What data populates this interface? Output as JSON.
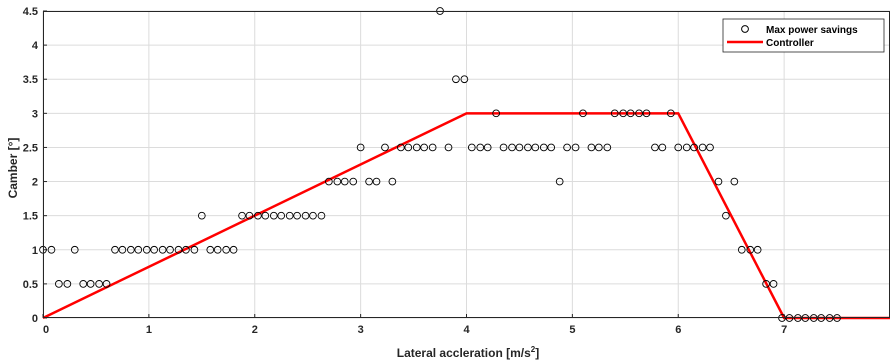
{
  "chart_data": {
    "type": "scatter",
    "xlabel": "Lateral accleration [m/s",
    "xlabel_sup": "2",
    "xlabel_end": "]",
    "ylabel": "Camber [°]",
    "xlim": [
      0,
      8
    ],
    "ylim": [
      0,
      4.5
    ],
    "xticks": [
      0,
      1,
      2,
      3,
      4,
      5,
      6,
      7
    ],
    "yticks": [
      0,
      0.5,
      1,
      1.5,
      2,
      2.5,
      3,
      3.5,
      4,
      4.5
    ],
    "xtick_labels": [
      "0",
      "1",
      "2",
      "3",
      "4",
      "5",
      "6",
      "7"
    ],
    "ytick_labels": [
      "0",
      "0.5",
      "1",
      "1.5",
      "2",
      "2.5",
      "3",
      "3.5",
      "4",
      "4.5"
    ],
    "grid": true,
    "legend_position": "top-right",
    "series": [
      {
        "name": "Max power savings",
        "kind": "scatter",
        "marker": "open-circle",
        "color": "#000000",
        "points": [
          [
            0.0,
            1.0
          ],
          [
            0.08,
            1.0
          ],
          [
            0.15,
            0.5
          ],
          [
            0.23,
            0.5
          ],
          [
            0.3,
            1.0
          ],
          [
            0.38,
            0.5
          ],
          [
            0.45,
            0.5
          ],
          [
            0.53,
            0.5
          ],
          [
            0.6,
            0.5
          ],
          [
            0.68,
            1.0
          ],
          [
            0.75,
            1.0
          ],
          [
            0.83,
            1.0
          ],
          [
            0.9,
            1.0
          ],
          [
            0.98,
            1.0
          ],
          [
            1.05,
            1.0
          ],
          [
            1.13,
            1.0
          ],
          [
            1.2,
            1.0
          ],
          [
            1.28,
            1.0
          ],
          [
            1.35,
            1.0
          ],
          [
            1.43,
            1.0
          ],
          [
            1.5,
            1.5
          ],
          [
            1.58,
            1.0
          ],
          [
            1.65,
            1.0
          ],
          [
            1.73,
            1.0
          ],
          [
            1.8,
            1.0
          ],
          [
            1.88,
            1.5
          ],
          [
            1.95,
            1.5
          ],
          [
            2.03,
            1.5
          ],
          [
            2.1,
            1.5
          ],
          [
            2.18,
            1.5
          ],
          [
            2.25,
            1.5
          ],
          [
            2.33,
            1.5
          ],
          [
            2.4,
            1.5
          ],
          [
            2.48,
            1.5
          ],
          [
            2.55,
            1.5
          ],
          [
            2.63,
            1.5
          ],
          [
            2.7,
            2.0
          ],
          [
            2.78,
            2.0
          ],
          [
            2.85,
            2.0
          ],
          [
            2.93,
            2.0
          ],
          [
            3.0,
            2.5
          ],
          [
            3.08,
            2.0
          ],
          [
            3.15,
            2.0
          ],
          [
            3.23,
            2.5
          ],
          [
            3.3,
            2.0
          ],
          [
            3.38,
            2.5
          ],
          [
            3.45,
            2.5
          ],
          [
            3.53,
            2.5
          ],
          [
            3.6,
            2.5
          ],
          [
            3.68,
            2.5
          ],
          [
            3.75,
            4.5
          ],
          [
            3.83,
            2.5
          ],
          [
            3.9,
            3.5
          ],
          [
            3.98,
            3.5
          ],
          [
            4.05,
            2.5
          ],
          [
            4.13,
            2.5
          ],
          [
            4.2,
            2.5
          ],
          [
            4.28,
            3.0
          ],
          [
            4.35,
            2.5
          ],
          [
            4.43,
            2.5
          ],
          [
            4.5,
            2.5
          ],
          [
            4.58,
            2.5
          ],
          [
            4.65,
            2.5
          ],
          [
            4.73,
            2.5
          ],
          [
            4.8,
            2.5
          ],
          [
            4.88,
            2.0
          ],
          [
            4.95,
            2.5
          ],
          [
            5.03,
            2.5
          ],
          [
            5.1,
            3.0
          ],
          [
            5.18,
            2.5
          ],
          [
            5.25,
            2.5
          ],
          [
            5.33,
            2.5
          ],
          [
            5.4,
            3.0
          ],
          [
            5.48,
            3.0
          ],
          [
            5.55,
            3.0
          ],
          [
            5.63,
            3.0
          ],
          [
            5.7,
            3.0
          ],
          [
            5.78,
            2.5
          ],
          [
            5.85,
            2.5
          ],
          [
            5.93,
            3.0
          ],
          [
            6.0,
            2.5
          ],
          [
            6.08,
            2.5
          ],
          [
            6.15,
            2.5
          ],
          [
            6.23,
            2.5
          ],
          [
            6.3,
            2.5
          ],
          [
            6.38,
            2.0
          ],
          [
            6.45,
            1.5
          ],
          [
            6.53,
            2.0
          ],
          [
            6.6,
            1.0
          ],
          [
            6.68,
            1.0
          ],
          [
            6.75,
            1.0
          ],
          [
            6.83,
            0.5
          ],
          [
            6.9,
            0.5
          ],
          [
            6.98,
            0.0
          ],
          [
            7.05,
            0.0
          ],
          [
            7.13,
            0.0
          ],
          [
            7.2,
            0.0
          ],
          [
            7.28,
            0.0
          ],
          [
            7.35,
            0.0
          ],
          [
            7.43,
            0.0
          ],
          [
            7.5,
            0.0
          ]
        ]
      },
      {
        "name": "Controller",
        "kind": "line",
        "color": "#ff0000",
        "points": [
          [
            0,
            0
          ],
          [
            4,
            3
          ],
          [
            6,
            3
          ],
          [
            7,
            0
          ],
          [
            8,
            0
          ]
        ]
      }
    ]
  }
}
